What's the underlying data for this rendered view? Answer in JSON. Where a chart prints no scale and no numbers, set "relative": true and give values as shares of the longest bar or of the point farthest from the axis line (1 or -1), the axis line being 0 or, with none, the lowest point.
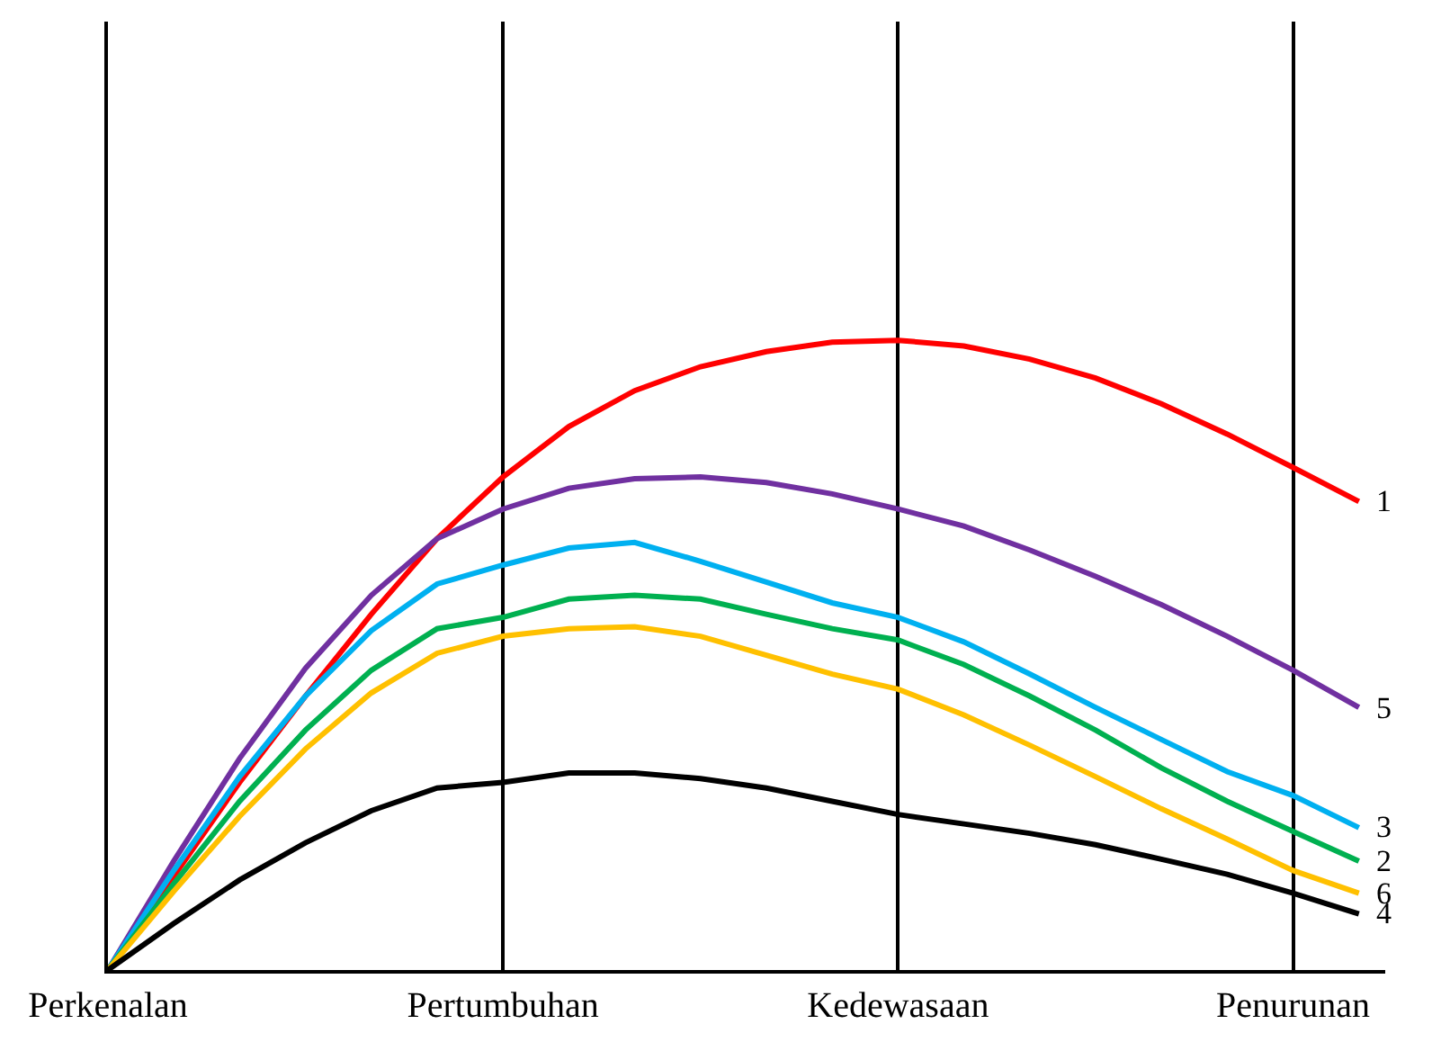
{
  "chart_data": {
    "type": "line",
    "relative": true,
    "categories": [
      "Perkenalan",
      null,
      null,
      null,
      null,
      null,
      "Pertumbuhan",
      null,
      null,
      null,
      null,
      null,
      "Kedewasaan",
      null,
      null,
      null,
      null,
      null,
      "Penurunan",
      null
    ],
    "grid": "x",
    "legend": false,
    "marker": "none",
    "line_style": "solid",
    "series": [
      {
        "name": "1",
        "color": "#ff0000",
        "values": [
          0,
          0.149,
          0.298,
          0.435,
          0.565,
          0.685,
          0.783,
          0.863,
          0.92,
          0.958,
          0.982,
          0.997,
          1,
          0.991,
          0.97,
          0.94,
          0.899,
          0.851,
          0.798,
          0.744
        ]
      },
      {
        "name": "5",
        "color": "#7030a0",
        "values": [
          0,
          0.173,
          0.336,
          0.479,
          0.595,
          0.685,
          0.732,
          0.765,
          0.78,
          0.783,
          0.774,
          0.756,
          0.732,
          0.705,
          0.667,
          0.625,
          0.58,
          0.53,
          0.476,
          0.417
        ]
      },
      {
        "name": "3",
        "color": "#00b0f0",
        "values": [
          0,
          0.158,
          0.307,
          0.435,
          0.539,
          0.613,
          0.643,
          0.67,
          0.679,
          0.649,
          0.616,
          0.583,
          0.56,
          0.521,
          0.47,
          0.417,
          0.366,
          0.315,
          0.277,
          0.226
        ]
      },
      {
        "name": "2",
        "color": "#00b050",
        "values": [
          0,
          0.137,
          0.268,
          0.381,
          0.476,
          0.542,
          0.56,
          0.589,
          0.595,
          0.589,
          0.565,
          0.542,
          0.524,
          0.485,
          0.435,
          0.381,
          0.321,
          0.268,
          0.22,
          0.173
        ]
      },
      {
        "name": "6",
        "color": "#ffc000",
        "values": [
          0,
          0.125,
          0.244,
          0.351,
          0.44,
          0.503,
          0.53,
          0.542,
          0.545,
          0.53,
          0.5,
          0.47,
          0.446,
          0.405,
          0.357,
          0.307,
          0.256,
          0.208,
          0.158,
          0.122
        ]
      },
      {
        "name": "4",
        "color": "#000000",
        "values": [
          0,
          0.074,
          0.143,
          0.202,
          0.253,
          0.289,
          0.298,
          0.313,
          0.313,
          0.304,
          0.289,
          0.268,
          0.247,
          0.232,
          0.217,
          0.199,
          0.176,
          0.152,
          0.122,
          0.089
        ]
      }
    ]
  }
}
